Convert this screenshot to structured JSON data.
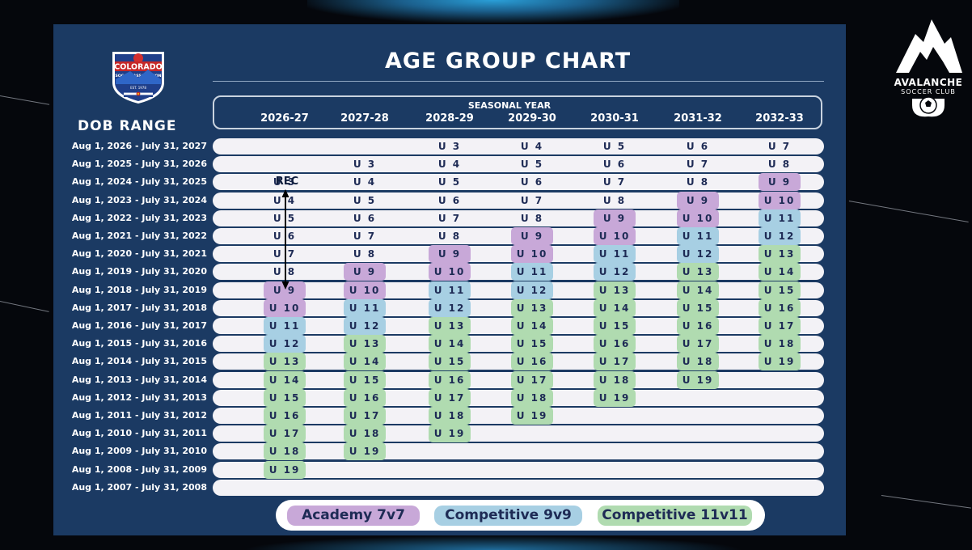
{
  "title": "AGE GROUP CHART",
  "dob_range_label": "DOB RANGE",
  "seasonal_year_label": "SEASONAL YEAR",
  "seasons": [
    "2026-27",
    "2027-28",
    "2028-29",
    "2029-30",
    "2030-31",
    "2031-32",
    "2032-33"
  ],
  "dob_ranges": [
    "Aug 1, 2026 - July 31, 2027",
    "Aug 1, 2025 - July 31, 2026",
    "Aug 1, 2024 - July 31, 2025",
    "Aug 1, 2023 - July 31, 2024",
    "Aug 1, 2022 - July 31, 2023",
    "Aug 1, 2021 - July 31, 2022",
    "Aug 1, 2020 - July 31, 2021",
    "Aug 1, 2019 - July 31, 2020",
    "Aug 1, 2018 - July 31, 2019",
    "Aug 1, 2017 - July 31, 2018",
    "Aug 1, 2016 - July 31, 2017",
    "Aug 1, 2015 - July 31, 2016",
    "Aug 1, 2014 - July 31, 2015",
    "Aug 1, 2013 - July 31, 2014",
    "Aug 1, 2012 - July 31, 2013",
    "Aug 1, 2011 - July 31, 2012",
    "Aug 1, 2010 - July 31, 2011",
    "Aug 1, 2009 - July 31, 2010",
    "Aug 1, 2008 - July 31, 2009",
    "Aug 1, 2007 - July 31, 2008"
  ],
  "age_offsets": [
    0,
    1,
    2,
    3,
    4,
    5,
    6
  ],
  "age_min": 3,
  "age_max": 19,
  "age_prefix": "U",
  "rec_label": "REC",
  "rec_column": 0,
  "rec_ages": [
    3,
    4,
    5,
    6,
    7,
    8
  ],
  "categories": [
    {
      "key": "academy",
      "label": "Academy 7v7",
      "min_age": 9,
      "max_age": 10,
      "color": "#c8a8d8"
    },
    {
      "key": "comp9",
      "label": "Competitive 9v9",
      "min_age": 11,
      "max_age": 12,
      "color": "#a7cfe3"
    },
    {
      "key": "comp11",
      "label": "Competitive 11v11",
      "min_age": 13,
      "max_age": 19,
      "color": "#b0dbb0"
    }
  ],
  "logos": {
    "left": {
      "name": "colorado-soccer-association-logo",
      "text_top": "COLORADO",
      "text_mid": "SOCCER ASSOCIATION",
      "text_est": "EST. 1978"
    },
    "right": {
      "name": "avalanche-soccer-club-logo",
      "title": "AVALANCHE",
      "subtitle": "SOCCER CLUB"
    }
  },
  "colors": {
    "panel": "#1b3a63",
    "row": "#f3f2f6",
    "text_dark": "#1e2b55"
  }
}
